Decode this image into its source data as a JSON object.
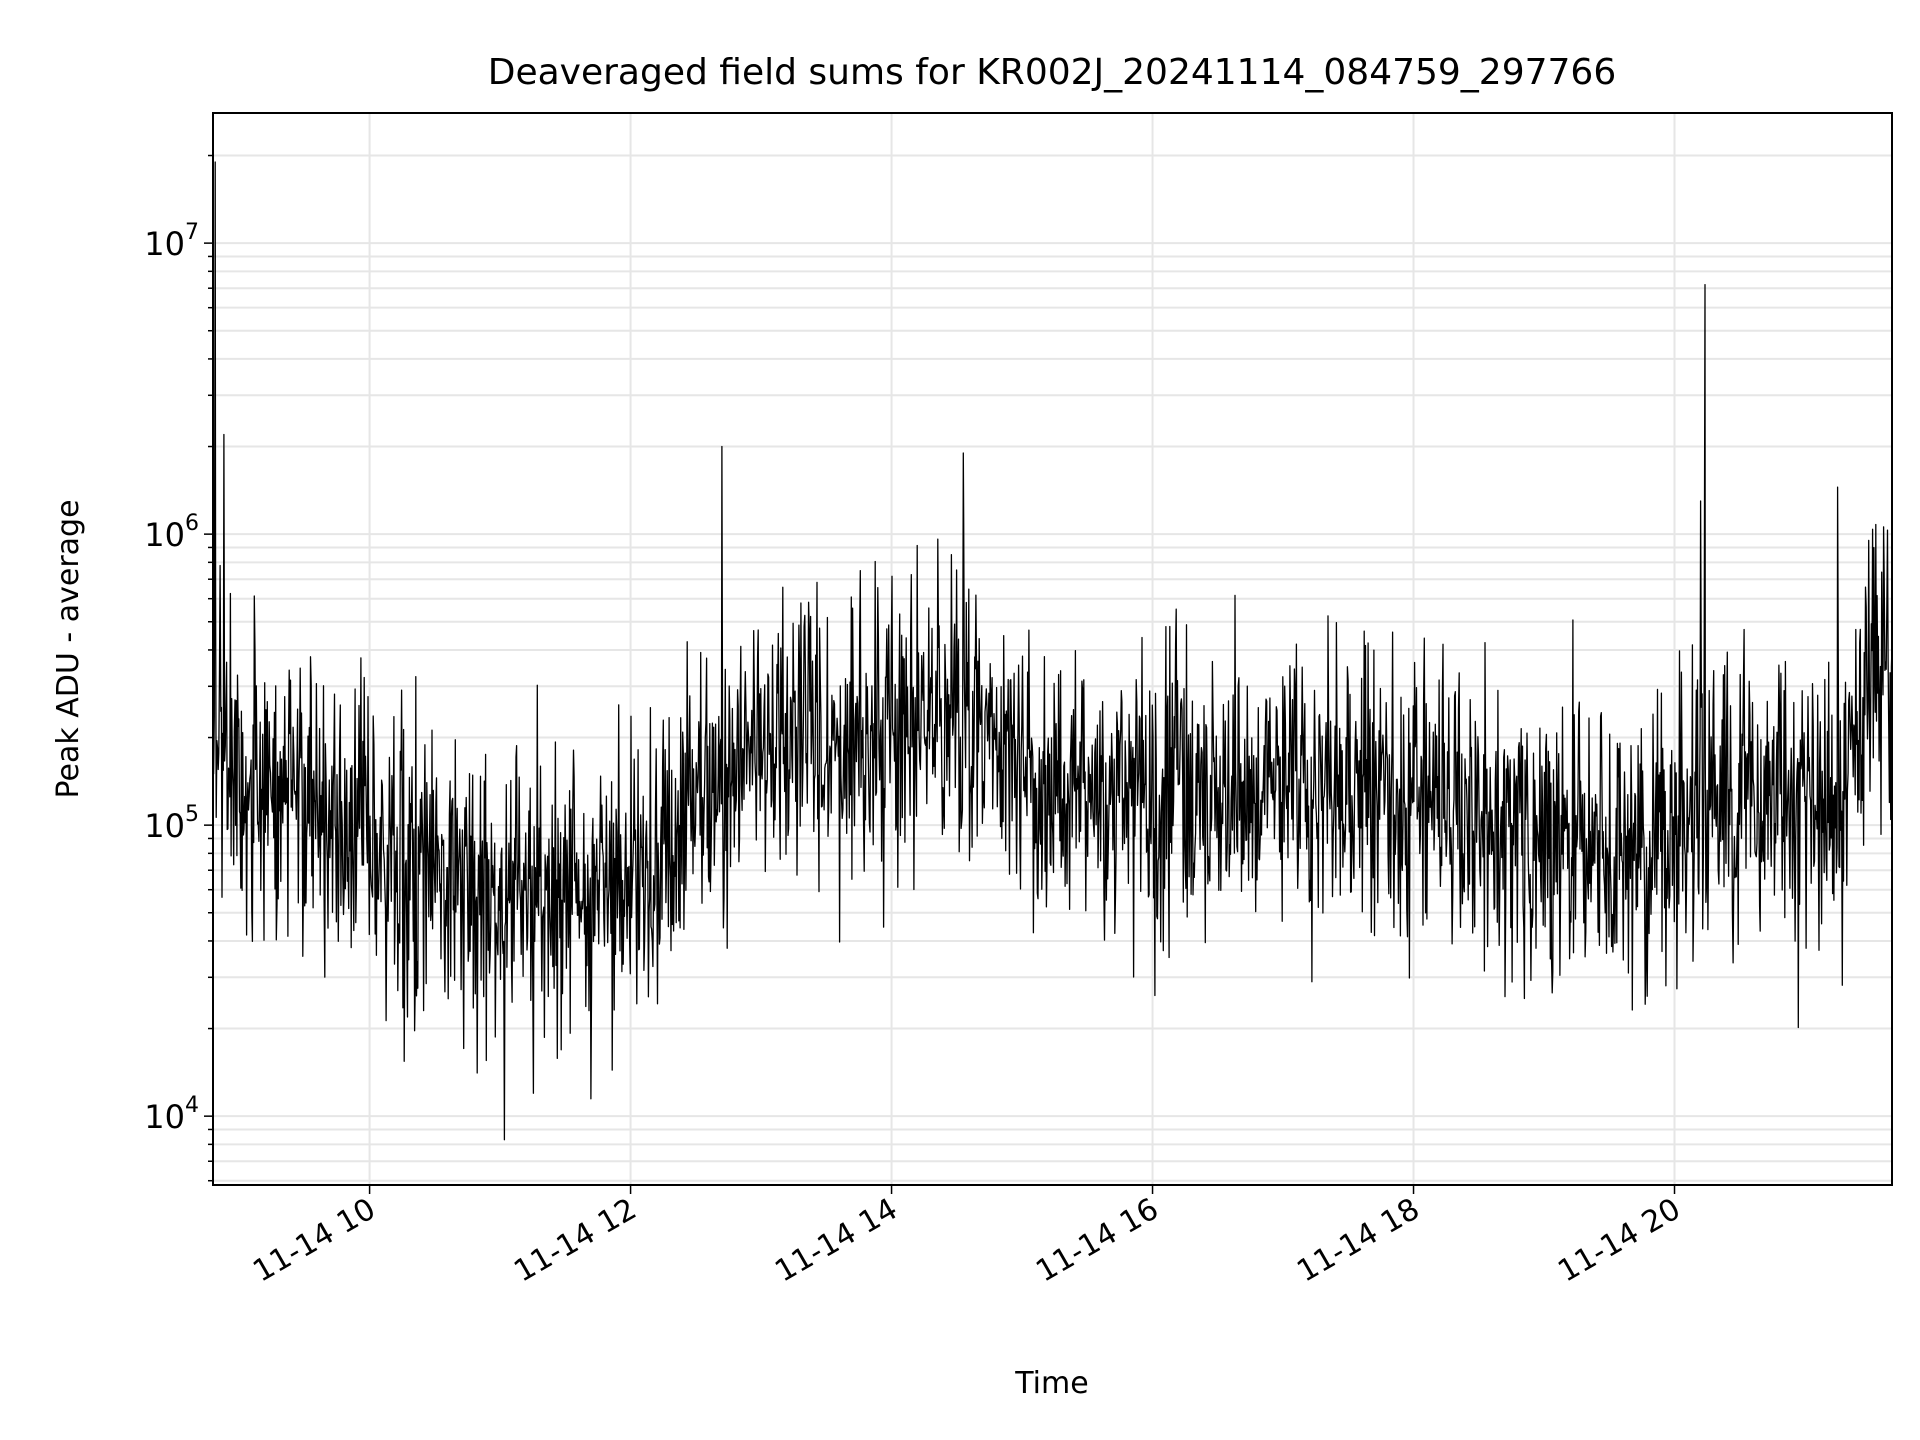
{
  "chart_data": {
    "type": "line",
    "title": "Deaveraged field sums for KR002J_20241114_084759_297766",
    "xlabel": "Time",
    "ylabel": "Peak ADU - average",
    "yscale": "log",
    "grid": true,
    "legend": "none",
    "line_color": "#000000",
    "grid_color": "#e6e6e6",
    "xlim": [
      "2024-11-14 08:48",
      "2024-11-14 21:40"
    ],
    "ylim": [
      5800,
      28000000
    ],
    "x_ticks": [
      {
        "time": "2024-11-14 10:00",
        "label": "11-14 10"
      },
      {
        "time": "2024-11-14 12:00",
        "label": "11-14 12"
      },
      {
        "time": "2024-11-14 14:00",
        "label": "11-14 14"
      },
      {
        "time": "2024-11-14 16:00",
        "label": "11-14 16"
      },
      {
        "time": "2024-11-14 18:00",
        "label": "11-14 18"
      },
      {
        "time": "2024-11-14 20:00",
        "label": "11-14 20"
      }
    ],
    "y_ticks": [
      {
        "value": 10000,
        "base": "10",
        "exp": "4"
      },
      {
        "value": 100000,
        "base": "10",
        "exp": "5"
      },
      {
        "value": 1000000,
        "base": "10",
        "exp": "6"
      },
      {
        "value": 10000000,
        "base": "10",
        "exp": "7"
      }
    ],
    "series": [
      {
        "x": [
          "2024-11-14 08:48",
          "2024-11-14 08:54",
          "2024-11-14 09:00",
          "2024-11-14 09:10",
          "2024-11-14 09:20",
          "2024-11-14 09:30",
          "2024-11-14 09:40",
          "2024-11-14 09:50",
          "2024-11-14 10:00",
          "2024-11-14 10:15",
          "2024-11-14 10:30",
          "2024-11-14 10:45",
          "2024-11-14 11:00",
          "2024-11-14 11:15",
          "2024-11-14 11:30",
          "2024-11-14 11:45",
          "2024-11-14 12:00",
          "2024-11-14 12:15",
          "2024-11-14 12:30",
          "2024-11-14 12:45",
          "2024-11-14 13:00",
          "2024-11-14 13:15",
          "2024-11-14 13:30",
          "2024-11-14 13:45",
          "2024-11-14 14:00",
          "2024-11-14 14:15",
          "2024-11-14 14:30",
          "2024-11-14 14:45",
          "2024-11-14 15:00",
          "2024-11-14 15:15",
          "2024-11-14 15:30",
          "2024-11-14 15:45",
          "2024-11-14 16:00",
          "2024-11-14 16:15",
          "2024-11-14 16:30",
          "2024-11-14 16:45",
          "2024-11-14 17:00",
          "2024-11-14 17:15",
          "2024-11-14 17:30",
          "2024-11-14 17:45",
          "2024-11-14 18:00",
          "2024-11-14 18:15",
          "2024-11-14 18:30",
          "2024-11-14 18:45",
          "2024-11-14 19:00",
          "2024-11-14 19:15",
          "2024-11-14 19:30",
          "2024-11-14 19:45",
          "2024-11-14 20:00",
          "2024-11-14 20:15",
          "2024-11-14 20:30",
          "2024-11-14 20:45",
          "2024-11-14 21:00",
          "2024-11-14 21:15",
          "2024-11-14 21:30",
          "2024-11-14 21:40"
        ],
        "y": [
          300000,
          200000,
          150000,
          130000,
          120000,
          110000,
          90000,
          85000,
          80000,
          75000,
          70000,
          65000,
          60000,
          55000,
          50000,
          60000,
          70000,
          80000,
          120000,
          150000,
          180000,
          200000,
          200000,
          180000,
          200000,
          220000,
          230000,
          210000,
          180000,
          150000,
          130000,
          120000,
          120000,
          125000,
          130000,
          140000,
          150000,
          155000,
          160000,
          150000,
          140000,
          120000,
          100000,
          95000,
          90000,
          85000,
          85000,
          90000,
          100000,
          110000,
          120000,
          120000,
          115000,
          110000,
          350000,
          400000
        ],
        "spikes": [
          {
            "time": "2024-11-14 08:49",
            "value": 19000000
          },
          {
            "time": "2024-11-14 08:53",
            "value": 2200000
          },
          {
            "time": "2024-11-14 12:42",
            "value": 2000000
          },
          {
            "time": "2024-11-14 14:33",
            "value": 1900000
          },
          {
            "time": "2024-11-14 20:14",
            "value": 7200000
          },
          {
            "time": "2024-11-14 20:12",
            "value": 1300000
          },
          {
            "time": "2024-11-14 21:15",
            "value": 1450000
          },
          {
            "time": "2024-11-14 11:02",
            "value": 8300
          }
        ]
      }
    ]
  }
}
